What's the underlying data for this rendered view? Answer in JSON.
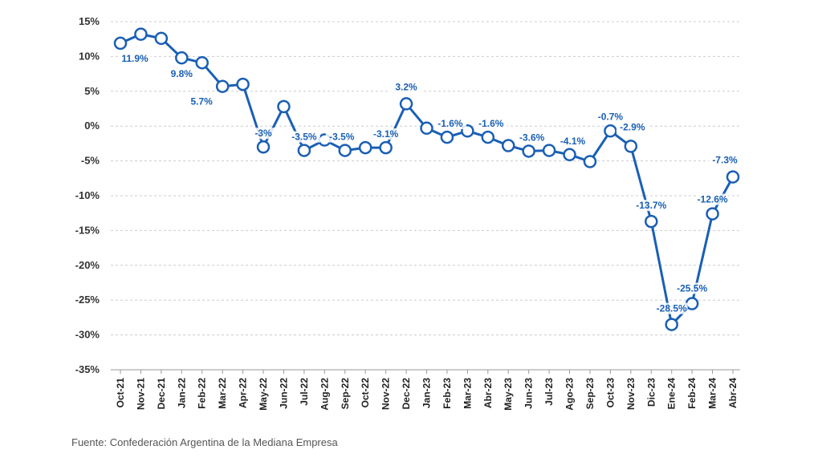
{
  "colors": {
    "line": "#1a5fb4",
    "label": "#1a5fb4",
    "grid": "#cccccc",
    "marker_fill": "#ffffff"
  },
  "source": "Fuente: Confederación Argentina de la Mediana Empresa",
  "chart_data": {
    "type": "line",
    "title": "",
    "xlabel": "",
    "ylabel": "",
    "ylim": [
      -35,
      15
    ],
    "yticks": [
      15,
      10,
      5,
      0,
      -5,
      -10,
      -15,
      -20,
      -25,
      -30,
      -35
    ],
    "ytick_labels": [
      "15%",
      "10%",
      "5%",
      "0%",
      "-5%",
      "-10%",
      "-15%",
      "-20%",
      "-25%",
      "-30%",
      "-35%"
    ],
    "grid": "horizontal dashed",
    "marker": "hollow circle",
    "categories": [
      "Oct-21",
      "Nov-21",
      "Dec-21",
      "Jan-22",
      "Feb-22",
      "Mar-22",
      "Apr-22",
      "May-22",
      "Jun-22",
      "Jul-22",
      "Aug-22",
      "Sep-22",
      "Oct-22",
      "Nov-22",
      "Dec-22",
      "Jan-23",
      "Feb-23",
      "Mar-23",
      "Abr-23",
      "May-23",
      "Jun-23",
      "Jul-23",
      "Ago-23",
      "Sep-23",
      "Oct-23",
      "Nov-23",
      "Dic-23",
      "Ene-24",
      "Feb-24",
      "Mar-24",
      "Abr-24"
    ],
    "values": [
      11.9,
      13.2,
      12.6,
      9.8,
      9.1,
      5.7,
      6.0,
      -3.0,
      2.8,
      -3.5,
      -2.0,
      -3.5,
      -3.1,
      -3.1,
      3.2,
      -0.3,
      -1.6,
      -0.7,
      -1.6,
      -2.8,
      -3.6,
      -3.5,
      -4.1,
      -5.1,
      -0.7,
      -2.9,
      -13.7,
      -28.5,
      -25.5,
      -12.6,
      -7.3
    ],
    "data_labels": [
      {
        "index": 0,
        "text": "11.9%"
      },
      {
        "index": 3,
        "text": "9.8%"
      },
      {
        "index": 5,
        "text": "5.7%"
      },
      {
        "index": 7,
        "text": "-3%"
      },
      {
        "index": 9,
        "text": "-3.5%"
      },
      {
        "index": 11,
        "text": "-3.5%"
      },
      {
        "index": 13,
        "text": "-3.1%"
      },
      {
        "index": 14,
        "text": "3.2%"
      },
      {
        "index": 16,
        "text": "-1.6%"
      },
      {
        "index": 18,
        "text": "-1.6%"
      },
      {
        "index": 20,
        "text": "-3.6%"
      },
      {
        "index": 22,
        "text": "-4.1%"
      },
      {
        "index": 24,
        "text": "-0.7%"
      },
      {
        "index": 25,
        "text": "-2.9%"
      },
      {
        "index": 26,
        "text": "-13.7%"
      },
      {
        "index": 27,
        "text": "-28.5%"
      },
      {
        "index": 28,
        "text": "-25.5%"
      },
      {
        "index": 29,
        "text": "-12.6%"
      },
      {
        "index": 30,
        "text": "-7.3%"
      }
    ]
  }
}
